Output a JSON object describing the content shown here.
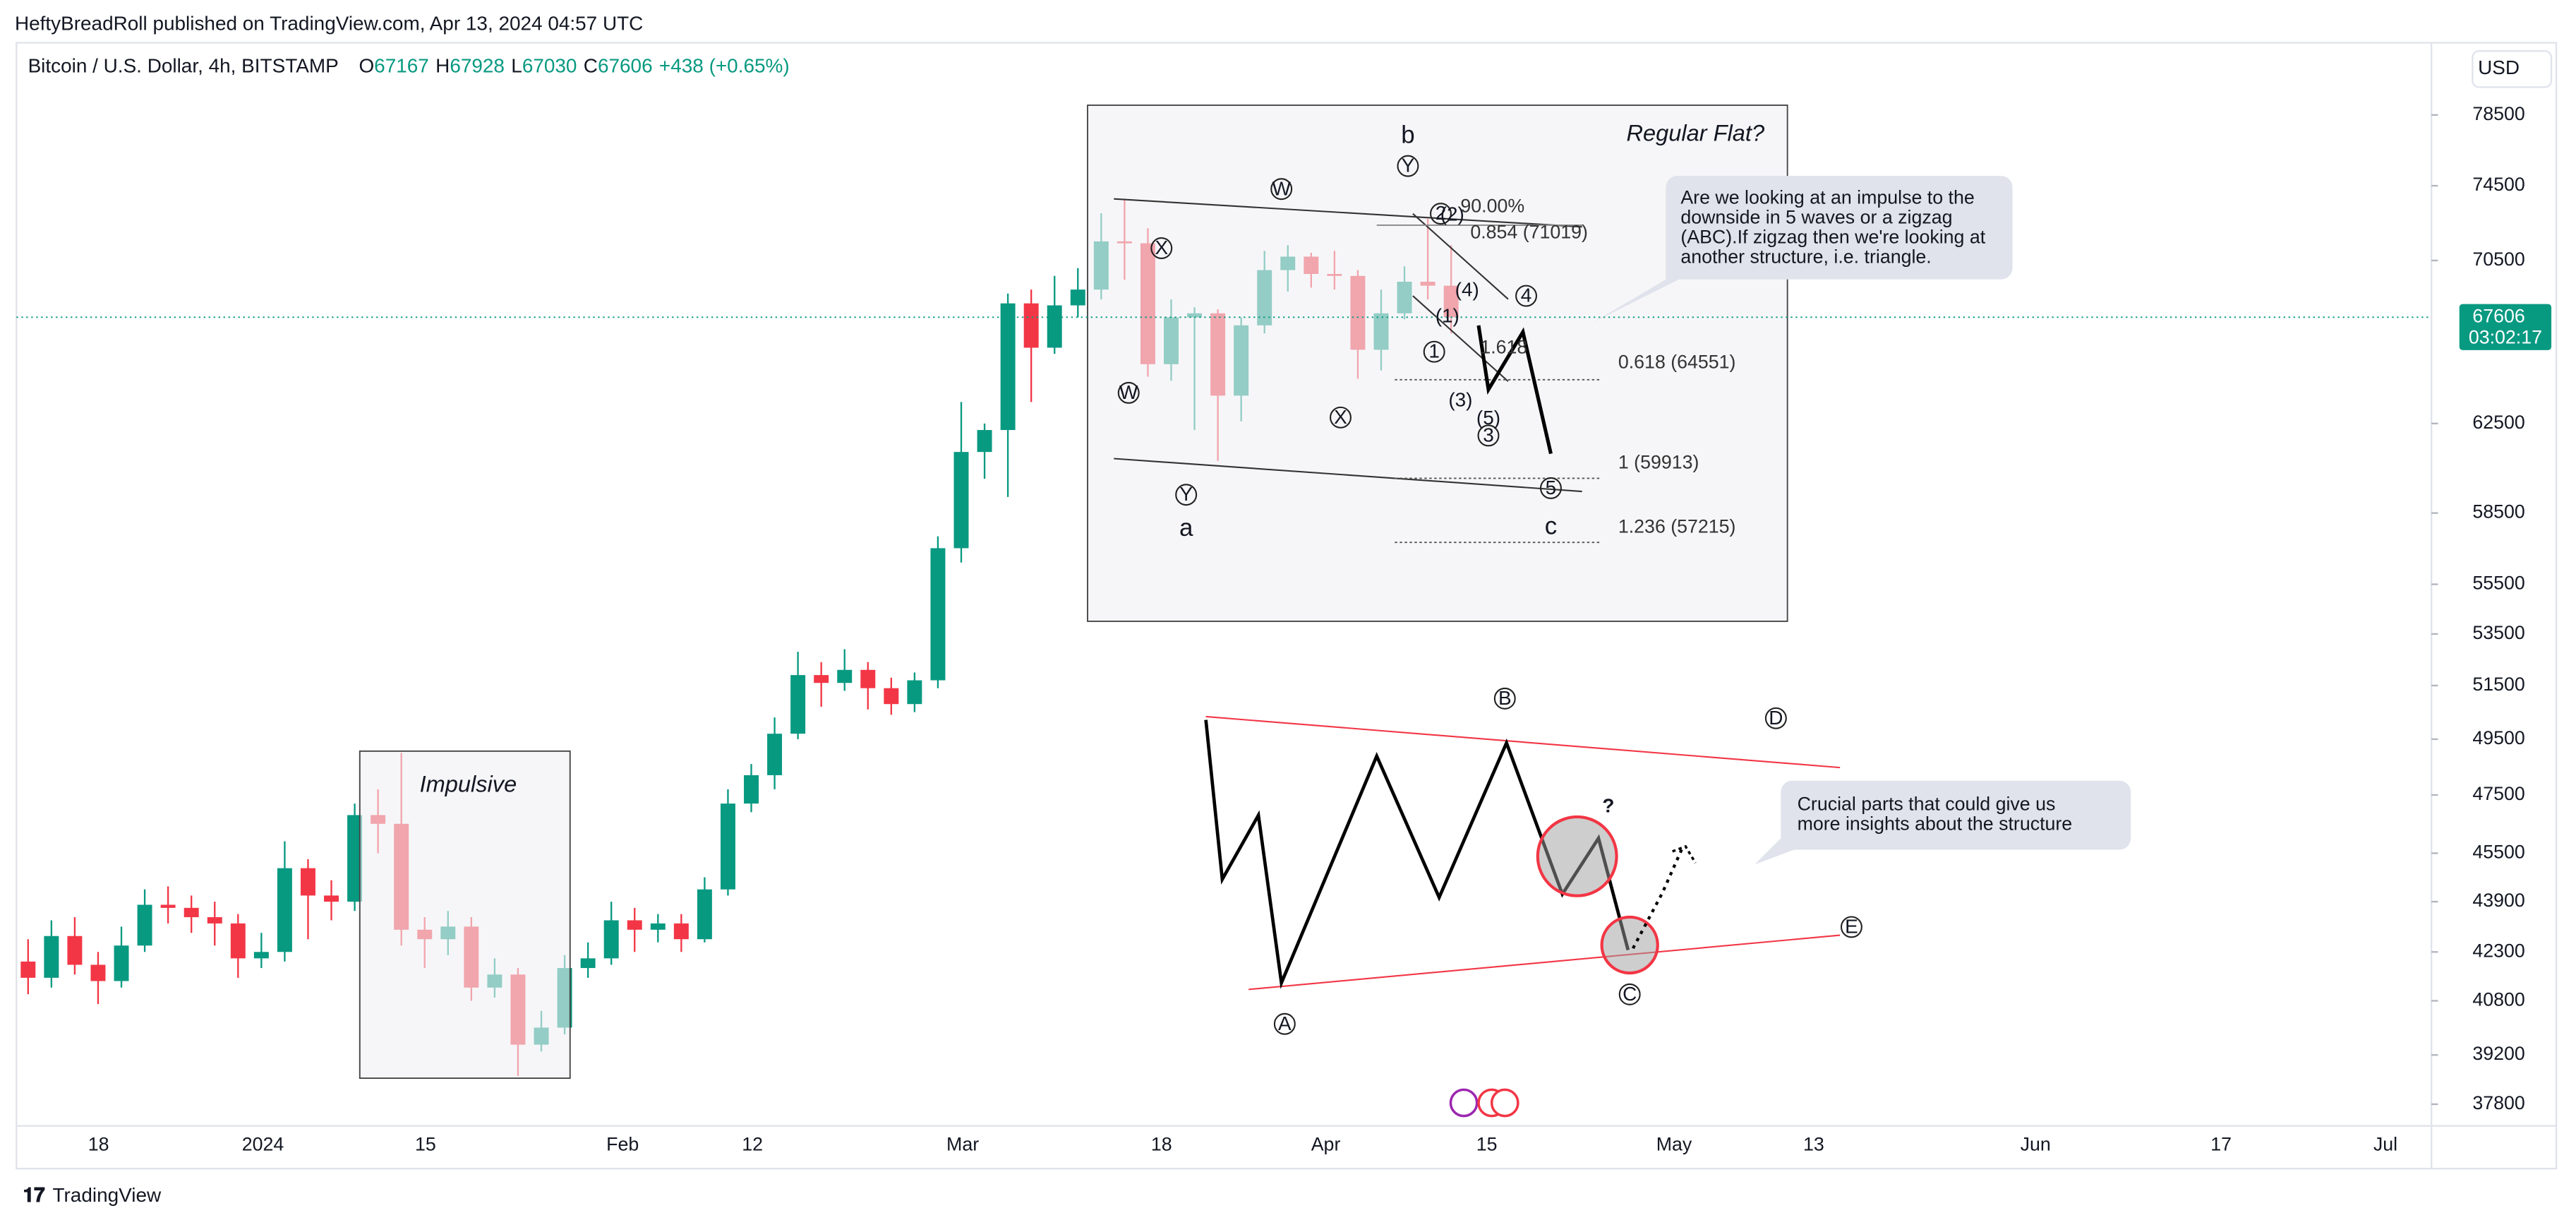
{
  "header": {
    "published": "HeftyBreadRoll published on TradingView.com, Apr 13, 2024 04:57 UTC",
    "brand": "TradingView",
    "currency": "USD",
    "countdown": "03:02:17"
  },
  "legend": {
    "symbol": "Bitcoin / U.S. Dollar, 4h, BITSTAMP",
    "fields": [
      {
        "label": "O",
        "value": "67167"
      },
      {
        "label": "H",
        "value": "67928"
      },
      {
        "label": "L",
        "value": "67030"
      },
      {
        "label": "C",
        "value": "67606"
      }
    ],
    "change": "+438 (+0.65%)"
  },
  "chart_data": {
    "type": "candlestick",
    "log_scale": true,
    "grid": false,
    "up_color": "#089981",
    "down_color": "#f23645",
    "price_line_color": "#089981",
    "ylim": [
      36000,
      82600
    ],
    "yticks": [
      37800,
      39200,
      40800,
      42300,
      43900,
      45500,
      47500,
      49500,
      51500,
      53500,
      55500,
      58500,
      62500,
      70500,
      74500,
      78500
    ],
    "xtick_labels": [
      "18",
      "2024",
      "15",
      "Feb",
      "12",
      "Mar",
      "18",
      "Apr",
      "15",
      "May",
      "13",
      "Jun",
      "17",
      "Jul"
    ],
    "open": [
      42000,
      41500,
      42800,
      41900,
      41400,
      42500,
      43800,
      43700,
      43400,
      43200,
      42100,
      42300,
      45000,
      44100,
      43900,
      46800,
      46500,
      43000,
      42700,
      43100,
      41200,
      41600,
      39500,
      40000,
      41800,
      42100,
      43300,
      43000,
      43200,
      42700,
      44300,
      47200,
      48200,
      49700,
      51900,
      51600,
      52100,
      51400,
      50800,
      51700,
      57000,
      61200,
      62200,
      68300,
      66100,
      68200,
      69000,
      71500,
      71400,
      65300,
      67600,
      67800,
      63800,
      67200,
      70000,
      70700,
      69800,
      69700,
      66000,
      67800,
      69400,
      69200
    ],
    "high": [
      42700,
      43300,
      43400,
      42300,
      43100,
      44300,
      44400,
      44100,
      43900,
      43500,
      42900,
      45900,
      45300,
      44600,
      47200,
      47700,
      49000,
      43400,
      43600,
      43400,
      42100,
      41800,
      40500,
      42200,
      42600,
      43900,
      43700,
      43500,
      43500,
      44700,
      47700,
      48600,
      50300,
      52800,
      52400,
      52900,
      52400,
      51800,
      52000,
      57500,
      63500,
      62500,
      68800,
      69000,
      69700,
      70100,
      73000,
      73800,
      72200,
      68500,
      68100,
      68000,
      67600,
      71000,
      71300,
      70900,
      71000,
      70000,
      69000,
      70200,
      72700,
      71300
    ],
    "low": [
      41000,
      41200,
      41600,
      40700,
      41200,
      42300,
      43200,
      42900,
      42500,
      41500,
      41800,
      42000,
      42700,
      43300,
      43600,
      45500,
      42500,
      41800,
      42200,
      40800,
      40900,
      38600,
      39300,
      39800,
      41500,
      41900,
      42300,
      42600,
      42300,
      42600,
      44100,
      46900,
      47700,
      49500,
      50700,
      51300,
      50600,
      50400,
      50500,
      51400,
      56400,
      60000,
      59200,
      63500,
      65800,
      67600,
      68500,
      69500,
      64700,
      64500,
      62200,
      60800,
      62600,
      66800,
      68900,
      69100,
      69000,
      64600,
      65000,
      67500,
      68500,
      66800
    ],
    "close": [
      41500,
      42800,
      41900,
      41400,
      42500,
      43800,
      43700,
      43400,
      43200,
      42100,
      42300,
      45000,
      44100,
      43900,
      46800,
      46500,
      43000,
      42700,
      43100,
      41200,
      41600,
      39500,
      40000,
      41800,
      42100,
      43300,
      43000,
      43200,
      42700,
      44300,
      47200,
      48200,
      49700,
      51900,
      51600,
      52100,
      51400,
      50800,
      51700,
      57000,
      61200,
      62200,
      68300,
      66100,
      68200,
      69000,
      71500,
      71400,
      65300,
      67600,
      67800,
      63800,
      67200,
      70000,
      70700,
      69800,
      69700,
      66000,
      67800,
      69400,
      69200,
      67606
    ]
  },
  "annotations": {
    "regular_flat": "Regular Flat?",
    "impulsive": "Impulsive",
    "wave_b": "b",
    "wave_a": "a",
    "wave_c": "c",
    "question": "?",
    "circled": [
      "Y",
      "W",
      "X",
      "W",
      "X",
      "Y",
      "2",
      "4",
      "1",
      "3",
      "5",
      "B",
      "D",
      "A",
      "C",
      "E"
    ],
    "minor": [
      "(2)",
      "(4)",
      "(1)",
      "(3)",
      "(5)"
    ],
    "fib": [
      "90.00%",
      "0.854 (71019)",
      "1.618",
      "0.618 (64551)",
      "1 (59913)",
      "1.236 (57215)"
    ],
    "note1": [
      "Are we looking at an impulse to the",
      "downside in 5 waves or a zigzag",
      "(ABC).If zigzag then we're looking at",
      "another structure, i.e. triangle."
    ],
    "note2": [
      "Crucial parts that could give us",
      "more insights about the structure"
    ]
  }
}
